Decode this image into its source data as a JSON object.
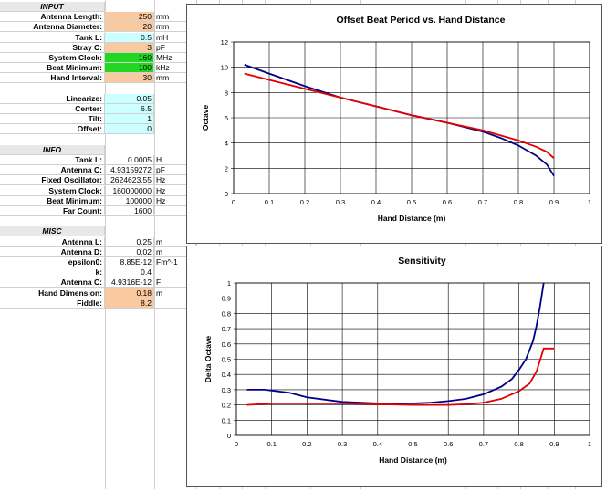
{
  "sheet": {
    "input": {
      "header": "INPUT",
      "rows": [
        {
          "label": "Antenna Length:",
          "value": "250",
          "unit": "mm",
          "fill": "orange"
        },
        {
          "label": "Antenna Diameter:",
          "value": "20",
          "unit": "mm",
          "fill": "orange"
        },
        {
          "label": "Tank L:",
          "value": "0.5",
          "unit": "mH",
          "fill": "cyan"
        },
        {
          "label": "Stray C:",
          "value": "3",
          "unit": "pF",
          "fill": "orange"
        },
        {
          "label": "System Clock:",
          "value": "160",
          "unit": "MHz",
          "fill": "green"
        },
        {
          "label": "Beat Minimum:",
          "value": "100",
          "unit": "kHz",
          "fill": "green"
        },
        {
          "label": "Hand Interval:",
          "value": "30",
          "unit": "mm",
          "fill": "orange"
        }
      ]
    },
    "calib": [
      {
        "label": "Linearize:",
        "value": "0.05"
      },
      {
        "label": "Center:",
        "value": "6.5"
      },
      {
        "label": "Tilt:",
        "value": "1"
      },
      {
        "label": "Offset:",
        "value": "0"
      }
    ],
    "info": {
      "header": "INFO",
      "rows": [
        {
          "label": "Tank L:",
          "value": "0.0005",
          "unit": "H"
        },
        {
          "label": "Antenna C:",
          "value": "4.93159272",
          "unit": "pF"
        },
        {
          "label": "Fixed Oscillator:",
          "value": "2624623.55",
          "unit": "Hz"
        },
        {
          "label": "System Clock:",
          "value": "160000000",
          "unit": "Hz"
        },
        {
          "label": "Beat Minimum:",
          "value": "100000",
          "unit": "Hz"
        },
        {
          "label": "Far Count:",
          "value": "1600",
          "unit": ""
        }
      ]
    },
    "misc": {
      "header": "MISC",
      "rows": [
        {
          "label": "Antenna L:",
          "value": "0.25",
          "unit": "m",
          "fill": ""
        },
        {
          "label": "Antenna D:",
          "value": "0.02",
          "unit": "m",
          "fill": ""
        },
        {
          "label": "epsilon0:",
          "value": "8.85E-12",
          "unit": "Fm^-1",
          "fill": ""
        },
        {
          "label": "k:",
          "value": "0.4",
          "unit": "",
          "fill": ""
        },
        {
          "label": "Antenna C:",
          "value": "4.9316E-12",
          "unit": "F",
          "fill": ""
        },
        {
          "label": "Hand Dimension:",
          "value": "0.18",
          "unit": "m",
          "fill": "orange"
        },
        {
          "label": "Fiddle:",
          "value": "8.2",
          "unit": "",
          "fill": "orange"
        }
      ]
    }
  },
  "colors": {
    "blue": "#00008b",
    "red": "#e00000",
    "orange": "#f9c9a0",
    "green": "#22d622",
    "cyan": "#ccffff"
  },
  "chart_data": [
    {
      "type": "line",
      "title": "Offset Beat Period vs. Hand Distance",
      "xlabel": "Hand Distance (m)",
      "ylabel": "Octave",
      "xlim": [
        0,
        1
      ],
      "ylim": [
        0,
        12
      ],
      "xticks": [
        "0",
        "0.1",
        "0.2",
        "0.3",
        "0.4",
        "0.5",
        "0.6",
        "0.7",
        "0.8",
        "0.9",
        "1"
      ],
      "yticks": [
        "0",
        "2",
        "4",
        "6",
        "8",
        "10",
        "12"
      ],
      "grid": true,
      "series": [
        {
          "color": "#00008b",
          "x": [
            0.03,
            0.1,
            0.2,
            0.3,
            0.4,
            0.5,
            0.6,
            0.7,
            0.75,
            0.8,
            0.85,
            0.88,
            0.9
          ],
          "y": [
            10.2,
            9.5,
            8.5,
            7.6,
            6.9,
            6.2,
            5.6,
            4.9,
            4.4,
            3.8,
            3.0,
            2.3,
            1.4
          ]
        },
        {
          "color": "#e00000",
          "x": [
            0.03,
            0.1,
            0.2,
            0.3,
            0.4,
            0.5,
            0.6,
            0.7,
            0.75,
            0.8,
            0.85,
            0.88,
            0.9
          ],
          "y": [
            9.5,
            9.0,
            8.3,
            7.6,
            6.9,
            6.2,
            5.6,
            5.0,
            4.6,
            4.2,
            3.7,
            3.3,
            2.8
          ]
        }
      ]
    },
    {
      "type": "line",
      "title": "Sensitivity",
      "xlabel": "Hand Distance (m)",
      "ylabel": "Delta Octave",
      "xlim": [
        0,
        1
      ],
      "ylim": [
        0,
        1
      ],
      "xticks": [
        "0",
        "0.1",
        "0.2",
        "0.3",
        "0.4",
        "0.5",
        "0.6",
        "0.7",
        "0.8",
        "0.9",
        "1"
      ],
      "yticks": [
        "0",
        "0.1",
        "0.2",
        "0.3",
        "0.4",
        "0.5",
        "0.6",
        "0.7",
        "0.8",
        "0.9",
        "1"
      ],
      "grid": true,
      "series": [
        {
          "color": "#00008b",
          "x": [
            0.03,
            0.08,
            0.15,
            0.2,
            0.3,
            0.4,
            0.5,
            0.55,
            0.6,
            0.65,
            0.7,
            0.75,
            0.78,
            0.8,
            0.82,
            0.84,
            0.85,
            0.86,
            0.87
          ],
          "y": [
            0.3,
            0.3,
            0.28,
            0.25,
            0.22,
            0.21,
            0.21,
            0.215,
            0.225,
            0.24,
            0.27,
            0.32,
            0.37,
            0.43,
            0.5,
            0.62,
            0.72,
            0.85,
            1.0
          ]
        },
        {
          "color": "#e00000",
          "x": [
            0.03,
            0.1,
            0.2,
            0.3,
            0.4,
            0.5,
            0.6,
            0.65,
            0.7,
            0.75,
            0.8,
            0.83,
            0.85,
            0.87,
            0.89,
            0.9
          ],
          "y": [
            0.2,
            0.21,
            0.21,
            0.21,
            0.205,
            0.2,
            0.2,
            0.205,
            0.215,
            0.24,
            0.29,
            0.34,
            0.42,
            0.57,
            0.57,
            0.57
          ]
        }
      ]
    }
  ]
}
